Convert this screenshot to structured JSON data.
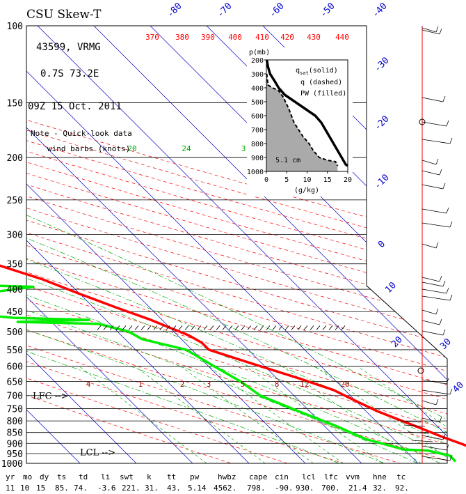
{
  "header": {
    "title": "CSU Skew-T",
    "station": "43599, VRMG",
    "location": "0.7S  73.2E",
    "time": "09Z 15 Oct. 2011",
    "note_line1": "Note - Quick-look data",
    "note_line2": "wind barbs (knots)"
  },
  "colors": {
    "temperature": "#ff0000",
    "dewpoint": "#00ee00",
    "isotherm": "#0000cc",
    "theta": "#ff0000",
    "theta_e": "#00aa00",
    "mixing_ratio_label": "#990000",
    "axis": "#000000"
  },
  "chart_data": {
    "type": "line",
    "title": "CSU Skew-T",
    "ylabel": "",
    "xlabel": "",
    "pressure_levels": [
      "100",
      "150",
      "200",
      "250",
      "300",
      "350",
      "400",
      "450",
      "500",
      "550",
      "600",
      "650",
      "700",
      "750",
      "800",
      "850",
      "900",
      "950",
      "1000"
    ],
    "pressure_values": [
      100,
      150,
      200,
      250,
      300,
      350,
      400,
      450,
      500,
      550,
      600,
      650,
      700,
      750,
      800,
      850,
      900,
      950,
      1000
    ],
    "isotherm_labels": [
      "-80",
      "-70",
      "-60",
      "-50",
      "-40",
      "-30",
      "-20",
      "-10",
      "0",
      "10",
      "20",
      "30",
      "40"
    ],
    "theta_labels": [
      "370",
      "380",
      "390",
      "400",
      "410",
      "420",
      "430",
      "440"
    ],
    "mixing_ratio_labels": [
      "4",
      "1",
      "2",
      "3",
      "5",
      "8",
      "12",
      "20"
    ],
    "theta_e_labels": [
      "20",
      "24",
      "3"
    ],
    "lfc_pressure": 700,
    "lcl_pressure": 925,
    "lfc_label": "LFC -->",
    "lcl_label": "LCL -->",
    "series": [
      {
        "name": "temperature",
        "points": [
          [
            -73,
            100
          ],
          [
            -73,
            115
          ],
          [
            -70,
            130
          ],
          [
            -66,
            150
          ],
          [
            -60,
            180
          ],
          [
            -59,
            195
          ],
          [
            -55,
            210
          ],
          [
            -54,
            230
          ],
          [
            -50,
            255
          ],
          [
            -45,
            280
          ],
          [
            -39,
            305
          ],
          [
            -33,
            335
          ],
          [
            -24,
            380
          ],
          [
            -20,
            410
          ],
          [
            -16,
            440
          ],
          [
            -12,
            470
          ],
          [
            -10,
            490
          ],
          [
            -8,
            510
          ],
          [
            -7,
            530
          ],
          [
            -7,
            550
          ],
          [
            -2,
            590
          ],
          [
            4,
            640
          ],
          [
            8,
            680
          ],
          [
            9,
            700
          ],
          [
            12,
            760
          ],
          [
            16,
            820
          ],
          [
            19,
            870
          ],
          [
            22,
            915
          ],
          [
            24,
            935
          ],
          [
            23,
            950
          ],
          [
            25,
            975
          ],
          [
            29,
            1000
          ]
        ]
      },
      {
        "name": "dewpoint",
        "points": [
          [
            -94,
            205
          ],
          [
            -94,
            215
          ],
          [
            -68,
            230
          ],
          [
            -75,
            245
          ],
          [
            -82,
            265
          ],
          [
            -78,
            285
          ],
          [
            -62,
            310
          ],
          [
            -90,
            335
          ],
          [
            -55,
            385
          ],
          [
            -27,
            395
          ],
          [
            -38,
            410
          ],
          [
            -48,
            430
          ],
          [
            -38,
            440
          ],
          [
            -46,
            450
          ],
          [
            -36,
            465
          ],
          [
            -23,
            470
          ],
          [
            -36,
            475
          ],
          [
            -22,
            480
          ],
          [
            -18,
            500
          ],
          [
            -17,
            520
          ],
          [
            -11,
            550
          ],
          [
            -9,
            600
          ],
          [
            -7,
            650
          ],
          [
            -6,
            700
          ],
          [
            -2,
            760
          ],
          [
            2,
            820
          ],
          [
            5,
            880
          ],
          [
            10,
            930
          ],
          [
            14,
            935
          ],
          [
            17,
            960
          ],
          [
            17,
            990
          ]
        ]
      }
    ],
    "inset": {
      "xlabel": "(g/kg)",
      "ylabel": "p(mb)",
      "legend_line1": "q",
      "legend_sub": "sat",
      "legend_line1_rest": "(solid)",
      "legend_line2": "q (dashed)",
      "legend_line3": "PW (filled)",
      "pw_label": "5.1 cm",
      "xlim": [
        0,
        20
      ],
      "ylim": [
        200,
        1000
      ],
      "x_ticks": [
        "0",
        "5",
        "10",
        "15",
        "20"
      ],
      "y_ticks": [
        "200",
        "300",
        "400",
        "500",
        "600",
        "700",
        "800",
        "900",
        "1000"
      ],
      "qsat": [
        [
          0.1,
          200
        ],
        [
          0.4,
          250
        ],
        [
          0.9,
          300
        ],
        [
          2.0,
          350
        ],
        [
          3.0,
          400
        ],
        [
          4.5,
          450
        ],
        [
          7.0,
          500
        ],
        [
          9.5,
          550
        ],
        [
          12.0,
          600
        ],
        [
          13.5,
          650
        ],
        [
          14.5,
          700
        ],
        [
          15.5,
          750
        ],
        [
          16.5,
          800
        ],
        [
          17.5,
          850
        ],
        [
          18.5,
          900
        ],
        [
          19.5,
          950
        ],
        [
          20,
          960
        ]
      ],
      "q": [
        [
          0.1,
          300
        ],
        [
          0.4,
          380
        ],
        [
          1.5,
          400
        ],
        [
          3.0,
          420
        ],
        [
          4.2,
          470
        ],
        [
          5.5,
          550
        ],
        [
          6.8,
          650
        ],
        [
          9.0,
          750
        ],
        [
          10.5,
          800
        ],
        [
          11.5,
          850
        ],
        [
          13.0,
          900
        ],
        [
          15.0,
          920
        ],
        [
          17.0,
          930
        ],
        [
          17.5,
          960
        ]
      ]
    },
    "stats_headers": [
      "yr",
      "mo",
      "dy",
      "ts",
      "td",
      "li",
      "swt",
      "k",
      "tt",
      "pw",
      "hwbz",
      "cape",
      "cin",
      "lcl",
      "lfc",
      "vvm",
      "hne",
      "tc"
    ],
    "stats_values": [
      "11",
      "10",
      "15",
      "85.",
      "74.",
      "-3.6",
      "221.",
      "31.",
      "43.",
      "5.14",
      "4562.",
      "798.",
      "-90.",
      "930.",
      "700.",
      "21.4",
      "32.",
      "92."
    ]
  }
}
